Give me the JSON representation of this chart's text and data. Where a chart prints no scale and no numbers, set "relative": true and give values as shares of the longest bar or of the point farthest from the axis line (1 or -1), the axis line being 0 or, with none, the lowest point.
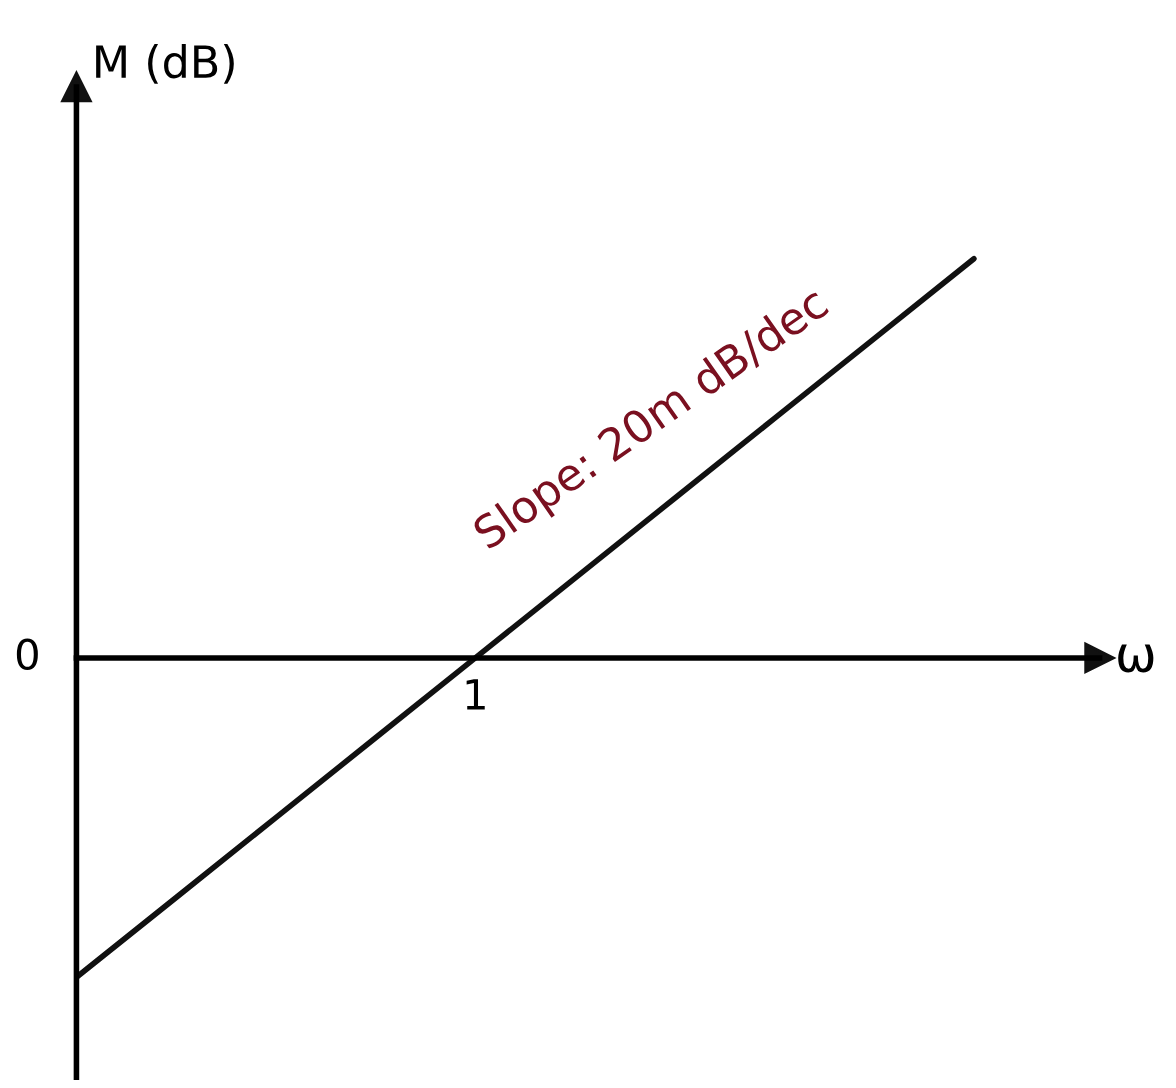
{
  "chart_data": {
    "type": "line",
    "relative": true,
    "ylabel": "M (dB)",
    "xlabel": "ω",
    "categories": [
      null,
      null,
      null,
      null,
      null,
      null,
      null,
      null,
      null,
      null
    ],
    "series": [
      {
        "color": "#111111",
        "values": [
          -0.8,
          -0.6,
          -0.4,
          -0.2,
          0.0,
          0.2,
          0.4,
          0.6,
          0.8,
          1.0
        ]
      }
    ],
    "annotations": [
      "Slope: 20m dB/dec",
      "0",
      "1"
    ]
  }
}
